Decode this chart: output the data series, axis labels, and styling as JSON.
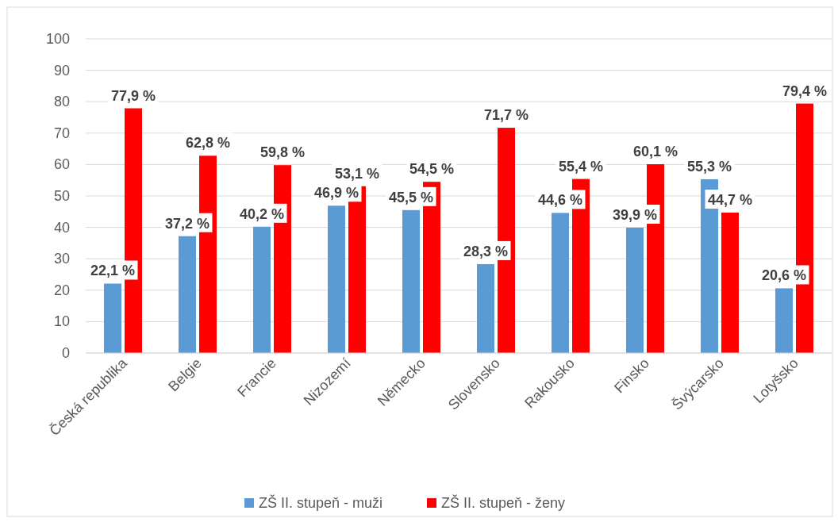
{
  "chart_data": {
    "type": "bar",
    "categories": [
      "Česká republika",
      "Belgie",
      "Francie",
      "Nizozemí",
      "Německo",
      "Slovensko",
      "Rakousko",
      "Finsko",
      "Švýcarsko",
      "Lotyšsko"
    ],
    "series": [
      {
        "name": "ZŠ II. stupeň - muži",
        "color": "#5b9bd5",
        "values": [
          22.1,
          37.2,
          40.2,
          46.9,
          45.5,
          28.3,
          44.6,
          39.9,
          55.3,
          20.6
        ],
        "value_labels": [
          "22,1 %",
          "37,2 %",
          "40,2 %",
          "46,9 %",
          "45,5 %",
          "28,3 %",
          "44,6 %",
          "39,9 %",
          "55,3 %",
          "20,6 %"
        ]
      },
      {
        "name": "ZŠ II. stupeň - ženy",
        "color": "#ff0000",
        "values": [
          77.9,
          62.8,
          59.8,
          53.1,
          54.5,
          71.7,
          55.4,
          60.1,
          44.7,
          79.4
        ],
        "value_labels": [
          "77,9 %",
          "62,8 %",
          "59,8 %",
          "53,1 %",
          "54,5 %",
          "71,7 %",
          "55,4 %",
          "60,1 %",
          "44,7 %",
          "79,4 %"
        ]
      }
    ],
    "ylim": [
      0,
      100
    ],
    "yticks": [
      0,
      10,
      20,
      30,
      40,
      50,
      60,
      70,
      80,
      90,
      100
    ],
    "grid": "y",
    "legend": "bottom"
  }
}
